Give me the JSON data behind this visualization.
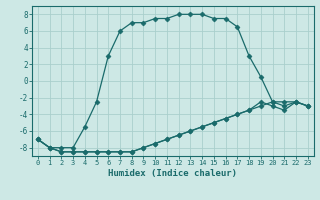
{
  "xlabel": "Humidex (Indice chaleur)",
  "xlim": [
    -0.5,
    23.5
  ],
  "ylim": [
    -9,
    9
  ],
  "xticks": [
    0,
    1,
    2,
    3,
    4,
    5,
    6,
    7,
    8,
    9,
    10,
    11,
    12,
    13,
    14,
    15,
    16,
    17,
    18,
    19,
    20,
    21,
    22,
    23
  ],
  "yticks": [
    -8,
    -6,
    -4,
    -2,
    0,
    2,
    4,
    6,
    8
  ],
  "bg_color": "#cde8e5",
  "grid_color": "#aacfcc",
  "line_color": "#1a6b6b",
  "line1_x": [
    0,
    1,
    2,
    3,
    4,
    5,
    6,
    7,
    8,
    9,
    10,
    11,
    12,
    13,
    14,
    15,
    16,
    17,
    18,
    19,
    20,
    21,
    22,
    23
  ],
  "line1_y": [
    -7.0,
    -8.0,
    -8.0,
    -8.0,
    -5.5,
    -2.5,
    3.0,
    6.0,
    7.0,
    7.0,
    7.5,
    7.5,
    8.0,
    8.0,
    8.0,
    7.5,
    7.5,
    6.5,
    3.0,
    0.5,
    -2.5,
    -3.0,
    -2.5,
    -3.0
  ],
  "line2_x": [
    0,
    1,
    2,
    3,
    4,
    5,
    6,
    7,
    8,
    9,
    10,
    11,
    12,
    13,
    14,
    15,
    16,
    17,
    18,
    19,
    20,
    21,
    22,
    23
  ],
  "line2_y": [
    -7.0,
    -8.0,
    -8.5,
    -8.5,
    -8.5,
    -8.5,
    -8.5,
    -8.5,
    -8.5,
    -8.0,
    -7.5,
    -7.0,
    -6.5,
    -6.0,
    -5.5,
    -5.0,
    -4.5,
    -4.0,
    -3.5,
    -3.0,
    -2.5,
    -2.5,
    -2.5,
    -3.0
  ],
  "line3_x": [
    0,
    1,
    2,
    3,
    4,
    5,
    6,
    7,
    8,
    9,
    10,
    11,
    12,
    13,
    14,
    15,
    16,
    17,
    18,
    19,
    20,
    21,
    22,
    23
  ],
  "line3_y": [
    -7.0,
    -8.0,
    -8.5,
    -8.5,
    -8.5,
    -8.5,
    -8.5,
    -8.5,
    -8.5,
    -8.0,
    -7.5,
    -7.0,
    -6.5,
    -6.0,
    -5.5,
    -5.0,
    -4.5,
    -4.0,
    -3.5,
    -2.5,
    -3.0,
    -3.5,
    -2.5,
    -3.0
  ]
}
